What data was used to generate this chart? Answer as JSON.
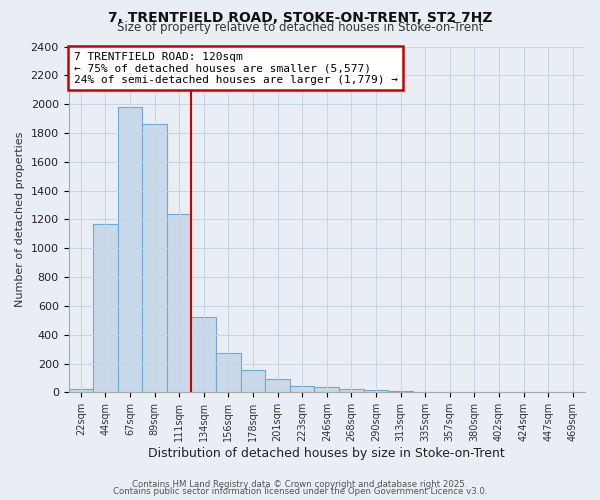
{
  "title1": "7, TRENTFIELD ROAD, STOKE-ON-TRENT, ST2 7HZ",
  "title2": "Size of property relative to detached houses in Stoke-on-Trent",
  "xlabel": "Distribution of detached houses by size in Stoke-on-Trent",
  "ylabel": "Number of detached properties",
  "bins": [
    "22sqm",
    "44sqm",
    "67sqm",
    "89sqm",
    "111sqm",
    "134sqm",
    "156sqm",
    "178sqm",
    "201sqm",
    "223sqm",
    "246sqm",
    "268sqm",
    "290sqm",
    "313sqm",
    "335sqm",
    "357sqm",
    "380sqm",
    "402sqm",
    "424sqm",
    "447sqm",
    "469sqm"
  ],
  "values": [
    25,
    1170,
    1980,
    1860,
    1240,
    520,
    270,
    155,
    90,
    45,
    40,
    20,
    15,
    8,
    5,
    4,
    3,
    3,
    2,
    2,
    2
  ],
  "bar_color": "#c9d9ea",
  "bar_edge_color": "#6aaad4",
  "red_line_color": "#cc0000",
  "annotation_title": "7 TRENTFIELD ROAD: 120sqm",
  "annotation_line1": "← 75% of detached houses are smaller (5,577)",
  "annotation_line2": "24% of semi-detached houses are larger (1,779) →",
  "annotation_box_facecolor": "#ffffff",
  "annotation_box_edgecolor": "#cc0000",
  "ylim": [
    0,
    2400
  ],
  "yticks": [
    0,
    200,
    400,
    600,
    800,
    1000,
    1200,
    1400,
    1600,
    1800,
    2000,
    2200,
    2400
  ],
  "footer1": "Contains HM Land Registry data © Crown copyright and database right 2025.",
  "footer2": "Contains public sector information licensed under the Open Government Licence v3.0.",
  "bg_color": "#e8eef4",
  "plot_bg_color": "#e8eef4",
  "red_line_bin_index": 4
}
